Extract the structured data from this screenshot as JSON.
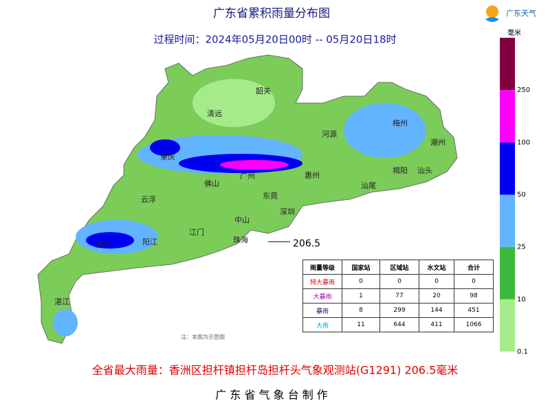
{
  "header": {
    "title": "广东省累积雨量分布图",
    "subtitle": "过程时间：2024年05月20日00时 -- 05月20日18时",
    "logo": "广东天气"
  },
  "legend": {
    "unit": "毫米",
    "ticks": [
      0.1,
      10,
      25,
      50,
      100,
      250
    ],
    "colors": [
      "#a6eb8a",
      "#3cb93c",
      "#63b4ff",
      "#0000f0",
      "#ff00ff",
      "#800040"
    ]
  },
  "map": {
    "cities": [
      "韶关",
      "清远",
      "河源",
      "梅州",
      "潮州",
      "揭阳",
      "汕头",
      "肇庆",
      "广州",
      "惠州",
      "佛山",
      "汕尾",
      "东莞",
      "云浮",
      "深圳",
      "中山",
      "江门",
      "珠海",
      "茂名",
      "阳江",
      "湛江"
    ],
    "max_annotation": "206.5",
    "note": "注：本图为示意图"
  },
  "table": {
    "header": [
      "雨量等级",
      "国家站",
      "区域站",
      "水文站",
      "合计"
    ],
    "rows": [
      [
        "特大暴雨",
        0,
        0,
        0,
        0
      ],
      [
        "大暴雨",
        1,
        77,
        20,
        98
      ],
      [
        "暴雨",
        8,
        299,
        144,
        451
      ],
      [
        "大雨",
        11,
        644,
        411,
        1066
      ]
    ]
  },
  "footer": {
    "max_rain": "全省最大雨量：香洲区担杆镇担杆岛担杆头气象观测站(G1291) 206.5毫米",
    "producer": "广 东 省 气 象 台 制 作"
  }
}
